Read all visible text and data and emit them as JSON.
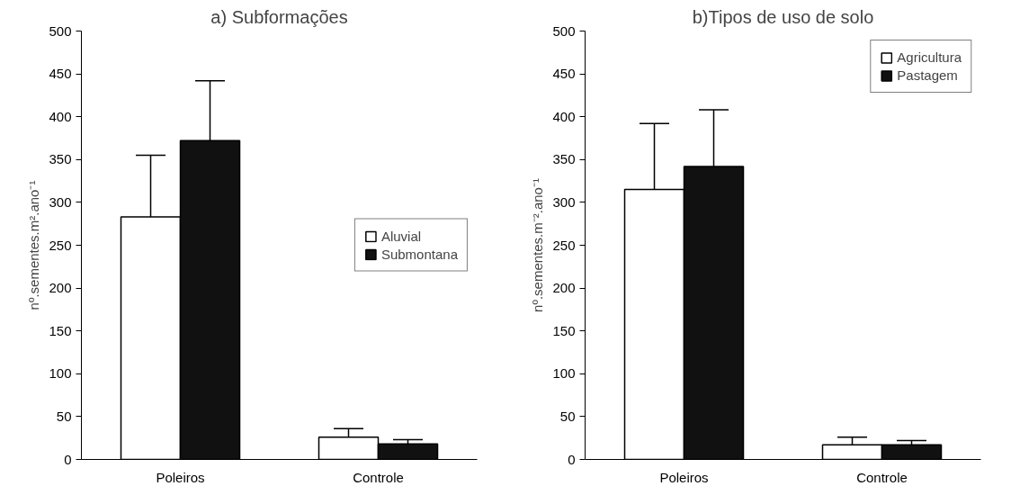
{
  "chart_data": [
    {
      "type": "bar",
      "title": "a) Subformações",
      "ylabel": "nº.sementes.m².ano⁻¹",
      "categories": [
        "Poleiros",
        "Controle"
      ],
      "ylim": [
        0,
        500
      ],
      "yticks": [
        0,
        50,
        100,
        150,
        200,
        250,
        300,
        350,
        400,
        450,
        500
      ],
      "grid": false,
      "legend": "right",
      "series": [
        {
          "name": "Aluvial",
          "color": "#ffffff",
          "values": [
            283,
            26
          ],
          "errors": [
            [
              283,
              355
            ],
            [
              26,
              36
            ]
          ]
        },
        {
          "name": "Submontana",
          "color": "#111111",
          "values": [
            372,
            18
          ],
          "errors": [
            [
              372,
              442
            ],
            [
              18,
              23
            ]
          ]
        }
      ]
    },
    {
      "type": "bar",
      "title": "b)Tipos de uso de solo",
      "ylabel": "nº.sementes.m⁻².ano⁻¹",
      "categories": [
        "Poleiros",
        "Controle"
      ],
      "ylim": [
        0,
        500
      ],
      "yticks": [
        0,
        50,
        100,
        150,
        200,
        250,
        300,
        350,
        400,
        450,
        500
      ],
      "grid": false,
      "legend": "top right",
      "series": [
        {
          "name": "Agricultura",
          "color": "#ffffff",
          "values": [
            315,
            17
          ],
          "errors": [
            [
              315,
              392
            ],
            [
              17,
              26
            ]
          ]
        },
        {
          "name": "Pastagem",
          "color": "#111111",
          "values": [
            342,
            17
          ],
          "errors": [
            [
              342,
              408
            ],
            [
              17,
              22
            ]
          ]
        }
      ]
    }
  ]
}
